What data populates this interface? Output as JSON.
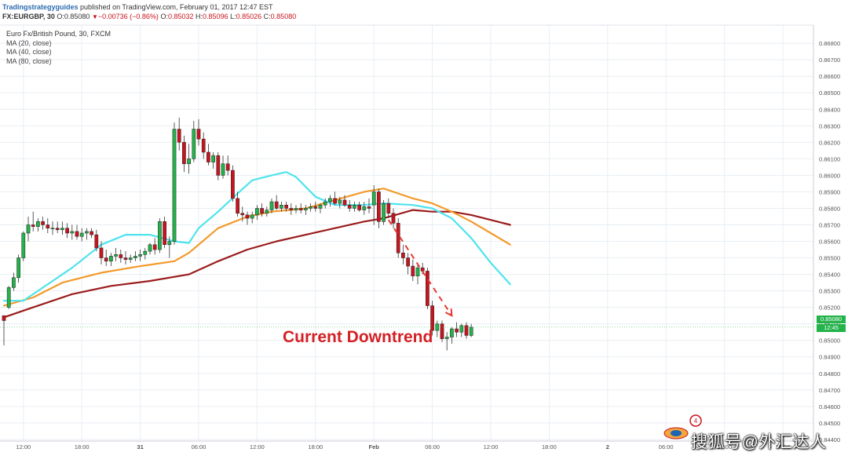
{
  "header": {
    "brand": "Tradingstrategyguides",
    "published": " published on TradingView.com, February 01, 2017 12:47 EST",
    "symbol": "FX:EURGBP, 30",
    "last": "0.85080",
    "change": "−0.00736 (−0.86%)",
    "o_label": "O:",
    "o": "0.85032",
    "h_label": "H:",
    "h": "0.85096",
    "l_label": "L:",
    "l": "0.85026",
    "c_label": "C:",
    "c": "0.85080"
  },
  "legend": {
    "title": "Euro Fx/British Pound, 30, FXCM",
    "ma1": "MA (20, close)",
    "ma2": "MA (40, close)",
    "ma3": "MA (80, close)"
  },
  "badges": {
    "price": "0.85080",
    "time": "12:45"
  },
  "annotation": "Current Downtrend",
  "watermark": "搜狐号@外汇达人",
  "colors": {
    "up": "#22b34a",
    "down": "#c8141e",
    "ma20": "#4ee3ee",
    "ma40": "#f39a2b",
    "ma80": "#9b1c1c",
    "arrow": "#e53935",
    "grid": "#e9eef3"
  },
  "chart_data": {
    "type": "candlestick",
    "title": "Euro Fx/British Pound, 30, FXCM",
    "symbol": "FX:EURGBP",
    "timeframe": "30",
    "ylim": [
      0.8439,
      0.8691
    ],
    "y_ticks": [
      "0.86800",
      "0.86700",
      "0.86600",
      "0.86500",
      "0.86400",
      "0.86300",
      "0.86200",
      "0.86100",
      "0.86000",
      "0.85900",
      "0.85800",
      "0.85700",
      "0.85600",
      "0.85500",
      "0.85400",
      "0.85300",
      "0.85200",
      "0.85100",
      "0.85000",
      "0.84900",
      "0.84800",
      "0.84700",
      "0.84600",
      "0.84500",
      "0.84400"
    ],
    "x_ticks": [
      "12:00",
      "18:00",
      "31",
      "06:00",
      "12:00",
      "18:00",
      "Feb",
      "06:00",
      "12:00",
      "18:00",
      "2",
      "06:00",
      "12:00",
      "18:00"
    ],
    "x_tick_index": [
      4,
      16,
      28,
      40,
      52,
      64,
      76,
      88,
      100,
      112,
      124,
      136,
      148,
      160
    ],
    "candles": [
      {
        "o": 0.8515,
        "h": 0.8515,
        "l": 0.8497,
        "c": 0.8512
      },
      {
        "o": 0.852,
        "h": 0.8533,
        "l": 0.8519,
        "c": 0.8532
      },
      {
        "o": 0.8532,
        "h": 0.8541,
        "l": 0.853,
        "c": 0.8538
      },
      {
        "o": 0.8538,
        "h": 0.8552,
        "l": 0.8535,
        "c": 0.855
      },
      {
        "o": 0.855,
        "h": 0.8566,
        "l": 0.8548,
        "c": 0.8565
      },
      {
        "o": 0.8565,
        "h": 0.8575,
        "l": 0.856,
        "c": 0.857
      },
      {
        "o": 0.857,
        "h": 0.8578,
        "l": 0.8566,
        "c": 0.8569
      },
      {
        "o": 0.8569,
        "h": 0.8574,
        "l": 0.8566,
        "c": 0.8572
      },
      {
        "o": 0.8572,
        "h": 0.8575,
        "l": 0.8567,
        "c": 0.857
      },
      {
        "o": 0.857,
        "h": 0.8574,
        "l": 0.8565,
        "c": 0.8568
      },
      {
        "o": 0.8568,
        "h": 0.8572,
        "l": 0.8564,
        "c": 0.8568
      },
      {
        "o": 0.8568,
        "h": 0.8572,
        "l": 0.8565,
        "c": 0.8567
      },
      {
        "o": 0.8567,
        "h": 0.8572,
        "l": 0.8564,
        "c": 0.8568
      },
      {
        "o": 0.8568,
        "h": 0.8571,
        "l": 0.8562,
        "c": 0.8565
      },
      {
        "o": 0.8565,
        "h": 0.857,
        "l": 0.8561,
        "c": 0.8566
      },
      {
        "o": 0.8566,
        "h": 0.857,
        "l": 0.8561,
        "c": 0.8563
      },
      {
        "o": 0.8563,
        "h": 0.8568,
        "l": 0.856,
        "c": 0.8565
      },
      {
        "o": 0.8565,
        "h": 0.8568,
        "l": 0.8561,
        "c": 0.8566
      },
      {
        "o": 0.8566,
        "h": 0.8568,
        "l": 0.8562,
        "c": 0.8564
      },
      {
        "o": 0.8564,
        "h": 0.8567,
        "l": 0.8554,
        "c": 0.8556
      },
      {
        "o": 0.8556,
        "h": 0.856,
        "l": 0.8546,
        "c": 0.855
      },
      {
        "o": 0.855,
        "h": 0.8555,
        "l": 0.8545,
        "c": 0.8548
      },
      {
        "o": 0.8548,
        "h": 0.8553,
        "l": 0.8545,
        "c": 0.8551
      },
      {
        "o": 0.8551,
        "h": 0.8556,
        "l": 0.8548,
        "c": 0.8552
      },
      {
        "o": 0.8552,
        "h": 0.8555,
        "l": 0.8547,
        "c": 0.855
      },
      {
        "o": 0.855,
        "h": 0.8554,
        "l": 0.8546,
        "c": 0.8549
      },
      {
        "o": 0.8549,
        "h": 0.8552,
        "l": 0.8547,
        "c": 0.855
      },
      {
        "o": 0.855,
        "h": 0.8554,
        "l": 0.8548,
        "c": 0.8551
      },
      {
        "o": 0.8551,
        "h": 0.8555,
        "l": 0.8548,
        "c": 0.8552
      },
      {
        "o": 0.8552,
        "h": 0.8556,
        "l": 0.8549,
        "c": 0.8554
      },
      {
        "o": 0.8554,
        "h": 0.8559,
        "l": 0.8552,
        "c": 0.8558
      },
      {
        "o": 0.8558,
        "h": 0.8562,
        "l": 0.8552,
        "c": 0.8555
      },
      {
        "o": 0.8555,
        "h": 0.8574,
        "l": 0.8553,
        "c": 0.8572
      },
      {
        "o": 0.8572,
        "h": 0.8575,
        "l": 0.8556,
        "c": 0.8558
      },
      {
        "o": 0.8558,
        "h": 0.8563,
        "l": 0.855,
        "c": 0.856
      },
      {
        "o": 0.856,
        "h": 0.8632,
        "l": 0.8558,
        "c": 0.8628
      },
      {
        "o": 0.8628,
        "h": 0.8635,
        "l": 0.8615,
        "c": 0.862
      },
      {
        "o": 0.862,
        "h": 0.8624,
        "l": 0.8602,
        "c": 0.8607
      },
      {
        "o": 0.8607,
        "h": 0.8619,
        "l": 0.8601,
        "c": 0.861
      },
      {
        "o": 0.861,
        "h": 0.8633,
        "l": 0.8608,
        "c": 0.8628
      },
      {
        "o": 0.8628,
        "h": 0.8634,
        "l": 0.8618,
        "c": 0.8622
      },
      {
        "o": 0.8622,
        "h": 0.8626,
        "l": 0.861,
        "c": 0.8614
      },
      {
        "o": 0.8614,
        "h": 0.8619,
        "l": 0.8606,
        "c": 0.8608
      },
      {
        "o": 0.8608,
        "h": 0.8614,
        "l": 0.8604,
        "c": 0.8612
      },
      {
        "o": 0.8612,
        "h": 0.8614,
        "l": 0.8597,
        "c": 0.86
      },
      {
        "o": 0.86,
        "h": 0.8612,
        "l": 0.8598,
        "c": 0.8607
      },
      {
        "o": 0.8607,
        "h": 0.8612,
        "l": 0.86,
        "c": 0.8603
      },
      {
        "o": 0.8603,
        "h": 0.8606,
        "l": 0.8584,
        "c": 0.8586
      },
      {
        "o": 0.8586,
        "h": 0.859,
        "l": 0.8575,
        "c": 0.8577
      },
      {
        "o": 0.8577,
        "h": 0.8581,
        "l": 0.8572,
        "c": 0.8576
      },
      {
        "o": 0.8576,
        "h": 0.8578,
        "l": 0.857,
        "c": 0.8574
      },
      {
        "o": 0.8574,
        "h": 0.8578,
        "l": 0.8571,
        "c": 0.8576
      },
      {
        "o": 0.8576,
        "h": 0.8582,
        "l": 0.8573,
        "c": 0.858
      },
      {
        "o": 0.858,
        "h": 0.8583,
        "l": 0.8575,
        "c": 0.8577
      },
      {
        "o": 0.8577,
        "h": 0.8581,
        "l": 0.8575,
        "c": 0.8579
      },
      {
        "o": 0.8579,
        "h": 0.8586,
        "l": 0.8577,
        "c": 0.8584
      },
      {
        "o": 0.8584,
        "h": 0.8588,
        "l": 0.8579,
        "c": 0.858
      },
      {
        "o": 0.858,
        "h": 0.8584,
        "l": 0.8578,
        "c": 0.8582
      },
      {
        "o": 0.8582,
        "h": 0.8584,
        "l": 0.8578,
        "c": 0.858
      },
      {
        "o": 0.858,
        "h": 0.8583,
        "l": 0.8576,
        "c": 0.8579
      },
      {
        "o": 0.8579,
        "h": 0.8582,
        "l": 0.8577,
        "c": 0.858
      },
      {
        "o": 0.858,
        "h": 0.8583,
        "l": 0.8577,
        "c": 0.8579
      },
      {
        "o": 0.8579,
        "h": 0.8582,
        "l": 0.8576,
        "c": 0.858
      },
      {
        "o": 0.858,
        "h": 0.8583,
        "l": 0.8578,
        "c": 0.8581
      },
      {
        "o": 0.8581,
        "h": 0.8584,
        "l": 0.8578,
        "c": 0.858
      },
      {
        "o": 0.858,
        "h": 0.8583,
        "l": 0.8577,
        "c": 0.8582
      },
      {
        "o": 0.8582,
        "h": 0.8586,
        "l": 0.858,
        "c": 0.8584
      },
      {
        "o": 0.8584,
        "h": 0.8588,
        "l": 0.8581,
        "c": 0.8586
      },
      {
        "o": 0.8586,
        "h": 0.859,
        "l": 0.8582,
        "c": 0.8583
      },
      {
        "o": 0.8583,
        "h": 0.8587,
        "l": 0.858,
        "c": 0.8585
      },
      {
        "o": 0.8585,
        "h": 0.8588,
        "l": 0.8581,
        "c": 0.8582
      },
      {
        "o": 0.8582,
        "h": 0.8585,
        "l": 0.8578,
        "c": 0.858
      },
      {
        "o": 0.858,
        "h": 0.8584,
        "l": 0.8578,
        "c": 0.8582
      },
      {
        "o": 0.8582,
        "h": 0.8584,
        "l": 0.8578,
        "c": 0.8579
      },
      {
        "o": 0.8579,
        "h": 0.8584,
        "l": 0.8576,
        "c": 0.8581
      },
      {
        "o": 0.8581,
        "h": 0.8586,
        "l": 0.8577,
        "c": 0.858
      },
      {
        "o": 0.8582,
        "h": 0.8594,
        "l": 0.857,
        "c": 0.859
      },
      {
        "o": 0.859,
        "h": 0.8592,
        "l": 0.8568,
        "c": 0.8572
      },
      {
        "o": 0.8572,
        "h": 0.8585,
        "l": 0.857,
        "c": 0.8583
      },
      {
        "o": 0.8583,
        "h": 0.8586,
        "l": 0.8574,
        "c": 0.8577
      },
      {
        "o": 0.8577,
        "h": 0.858,
        "l": 0.8568,
        "c": 0.8571
      },
      {
        "o": 0.8571,
        "h": 0.8574,
        "l": 0.855,
        "c": 0.8553
      },
      {
        "o": 0.8553,
        "h": 0.8558,
        "l": 0.8546,
        "c": 0.855
      },
      {
        "o": 0.855,
        "h": 0.8553,
        "l": 0.854,
        "c": 0.8545
      },
      {
        "o": 0.8545,
        "h": 0.8549,
        "l": 0.8536,
        "c": 0.8539
      },
      {
        "o": 0.8539,
        "h": 0.8546,
        "l": 0.8534,
        "c": 0.8544
      },
      {
        "o": 0.8544,
        "h": 0.8547,
        "l": 0.854,
        "c": 0.8542
      },
      {
        "o": 0.8542,
        "h": 0.8544,
        "l": 0.8519,
        "c": 0.8521
      },
      {
        "o": 0.8521,
        "h": 0.8524,
        "l": 0.8503,
        "c": 0.8506
      },
      {
        "o": 0.8506,
        "h": 0.8512,
        "l": 0.8502,
        "c": 0.851
      },
      {
        "o": 0.851,
        "h": 0.8512,
        "l": 0.8499,
        "c": 0.8501
      },
      {
        "o": 0.8501,
        "h": 0.8505,
        "l": 0.8494,
        "c": 0.8502
      },
      {
        "o": 0.8502,
        "h": 0.8508,
        "l": 0.8498,
        "c": 0.8507
      },
      {
        "o": 0.8507,
        "h": 0.8511,
        "l": 0.8502,
        "c": 0.8505
      },
      {
        "o": 0.8505,
        "h": 0.851,
        "l": 0.8502,
        "c": 0.8509
      },
      {
        "o": 0.8509,
        "h": 0.8511,
        "l": 0.8501,
        "c": 0.8503
      },
      {
        "o": 0.8503,
        "h": 0.851,
        "l": 0.8502,
        "c": 0.8508
      }
    ],
    "ma20": [
      {
        "i": 0,
        "y": 0.8524
      },
      {
        "i": 4,
        "y": 0.8524
      },
      {
        "i": 8,
        "y": 0.8532
      },
      {
        "i": 14,
        "y": 0.8544
      },
      {
        "i": 20,
        "y": 0.8558
      },
      {
        "i": 25,
        "y": 0.8564
      },
      {
        "i": 30,
        "y": 0.8564
      },
      {
        "i": 35,
        "y": 0.856
      },
      {
        "i": 38,
        "y": 0.8559
      },
      {
        "i": 40,
        "y": 0.8568
      },
      {
        "i": 44,
        "y": 0.8578
      },
      {
        "i": 48,
        "y": 0.8589
      },
      {
        "i": 51,
        "y": 0.8597
      },
      {
        "i": 55,
        "y": 0.86
      },
      {
        "i": 58,
        "y": 0.8602
      },
      {
        "i": 60,
        "y": 0.8599
      },
      {
        "i": 64,
        "y": 0.8587
      },
      {
        "i": 68,
        "y": 0.8582
      },
      {
        "i": 74,
        "y": 0.8582
      },
      {
        "i": 78,
        "y": 0.8583
      },
      {
        "i": 84,
        "y": 0.8582
      },
      {
        "i": 88,
        "y": 0.858
      },
      {
        "i": 92,
        "y": 0.8574
      },
      {
        "i": 96,
        "y": 0.8562
      },
      {
        "i": 100,
        "y": 0.8547
      },
      {
        "i": 104,
        "y": 0.8534
      }
    ],
    "ma40": [
      {
        "i": 0,
        "y": 0.8521
      },
      {
        "i": 6,
        "y": 0.8526
      },
      {
        "i": 12,
        "y": 0.8535
      },
      {
        "i": 20,
        "y": 0.8541
      },
      {
        "i": 28,
        "y": 0.8545
      },
      {
        "i": 35,
        "y": 0.8548
      },
      {
        "i": 38,
        "y": 0.8553
      },
      {
        "i": 44,
        "y": 0.8568
      },
      {
        "i": 50,
        "y": 0.8575
      },
      {
        "i": 55,
        "y": 0.8578
      },
      {
        "i": 62,
        "y": 0.858
      },
      {
        "i": 68,
        "y": 0.8585
      },
      {
        "i": 74,
        "y": 0.859
      },
      {
        "i": 78,
        "y": 0.8592
      },
      {
        "i": 84,
        "y": 0.8586
      },
      {
        "i": 88,
        "y": 0.8583
      },
      {
        "i": 92,
        "y": 0.8578
      },
      {
        "i": 96,
        "y": 0.8572
      },
      {
        "i": 100,
        "y": 0.8565
      },
      {
        "i": 104,
        "y": 0.8558
      }
    ],
    "ma80": [
      {
        "i": 0,
        "y": 0.8514
      },
      {
        "i": 6,
        "y": 0.852
      },
      {
        "i": 14,
        "y": 0.8528
      },
      {
        "i": 22,
        "y": 0.8533
      },
      {
        "i": 30,
        "y": 0.8536
      },
      {
        "i": 38,
        "y": 0.854
      },
      {
        "i": 44,
        "y": 0.8548
      },
      {
        "i": 50,
        "y": 0.8555
      },
      {
        "i": 56,
        "y": 0.856
      },
      {
        "i": 62,
        "y": 0.8564
      },
      {
        "i": 68,
        "y": 0.8568
      },
      {
        "i": 74,
        "y": 0.8572
      },
      {
        "i": 78,
        "y": 0.8574
      },
      {
        "i": 84,
        "y": 0.8579
      },
      {
        "i": 88,
        "y": 0.8578
      },
      {
        "i": 92,
        "y": 0.8578
      },
      {
        "i": 96,
        "y": 0.8576
      },
      {
        "i": 100,
        "y": 0.8573
      },
      {
        "i": 104,
        "y": 0.857
      }
    ],
    "annotation_arrow": {
      "from": {
        "i": 79,
        "y": 0.8573
      },
      "to": {
        "i": 92,
        "y": 0.8515
      }
    },
    "current_price": 0.8508,
    "current_time": "12:45"
  }
}
